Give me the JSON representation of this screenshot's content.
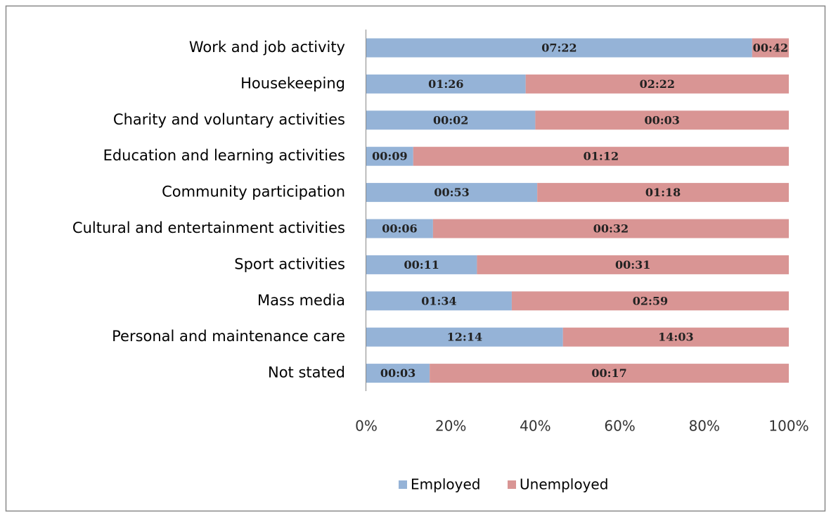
{
  "chart_data": {
    "type": "bar",
    "orientation": "horizontal",
    "stacking": "percent",
    "categories": [
      "Work and job activity",
      "Housekeeping",
      "Charity and voluntary activities",
      "Education and learning activities",
      "Community participation",
      "Cultural and entertainment activities",
      "Sport activities",
      "Mass media",
      "Personal   and maintenance care",
      "Not stated"
    ],
    "series": [
      {
        "name": "Employed",
        "color": "#95b3d7",
        "values": [
          442,
          86,
          2,
          9,
          53,
          6,
          11,
          94,
          734,
          3
        ],
        "value_labels": [
          "07:22",
          "01:26",
          "00:02",
          "00:09",
          "00:53",
          "00:06",
          "00:11",
          "01:34",
          "12:14",
          "00:03"
        ]
      },
      {
        "name": "Unemployed",
        "color": "#d99594",
        "values": [
          42,
          142,
          3,
          72,
          78,
          32,
          31,
          179,
          843,
          17
        ],
        "value_labels": [
          "00:42",
          "02:22",
          "00:03",
          "01:12",
          "01:18",
          "00:32",
          "00:31",
          "02:59",
          "14:03",
          "00:17"
        ]
      }
    ],
    "xlim": [
      0,
      100
    ],
    "xticks": [
      {
        "value": 0,
        "label": "0%"
      },
      {
        "value": 20,
        "label": "20%"
      },
      {
        "value": 40,
        "label": "40%"
      },
      {
        "value": 60,
        "label": "60%"
      },
      {
        "value": 80,
        "label": "80%"
      },
      {
        "value": 100,
        "label": "100%"
      }
    ],
    "grid": false,
    "legend": "bottom"
  }
}
